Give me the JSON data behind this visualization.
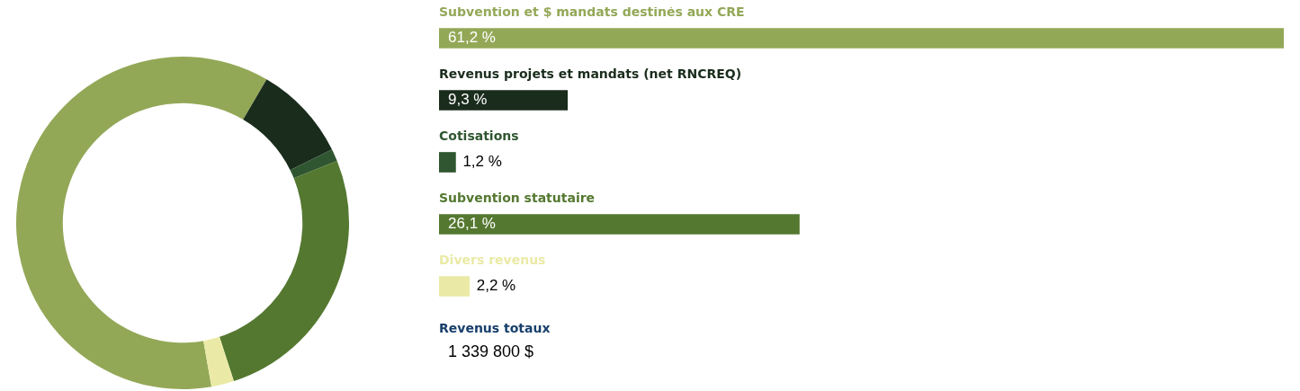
{
  "chart_data": [
    {
      "type": "donut",
      "categories": [
        null,
        null,
        null,
        null,
        null
      ],
      "values": [
        61.2,
        9.3,
        1.2,
        26.1,
        2.2
      ],
      "colors": [
        "#93a857",
        "#1a2c1c",
        "#2f5630",
        "#547830",
        "#eaeaa6"
      ]
    },
    {
      "type": "bar",
      "orientation": "horizontal",
      "categories": [
        "Subvention et $ mandats destinés aux CRE",
        "Revenus projets et mandats (net RNCREQ)",
        "Cotisations",
        "Subvention statutaire",
        "Divers revenus"
      ],
      "values": [
        61.2,
        9.3,
        1.2,
        26.1,
        2.2
      ],
      "colors": [
        "#93a857",
        "#1a2c1c",
        "#2f5630",
        "#547830",
        "#eaeaa6"
      ],
      "value_labels": [
        "61,2 %",
        "9,3 %",
        "1,2 %",
        "26,1 %",
        "2,2 %"
      ],
      "annotations": [
        "Revenus totaux",
        "1 339 800 $"
      ]
    }
  ]
}
